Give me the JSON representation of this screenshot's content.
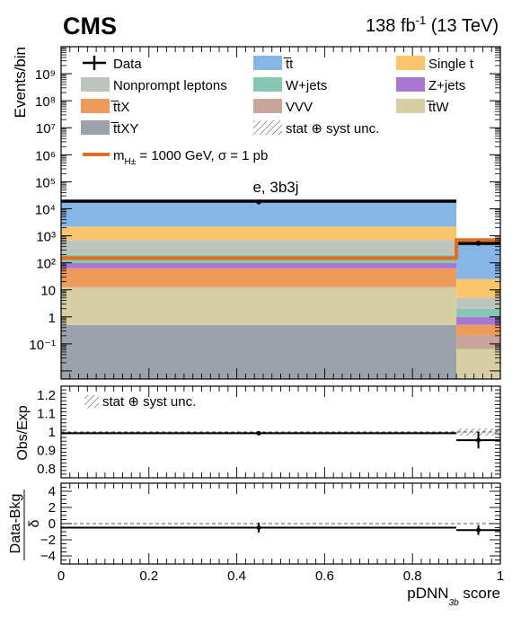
{
  "header": {
    "experiment": "CMS",
    "lumi": "138 fb",
    "lumi_sup": "-1",
    "energy": " (13 TeV)"
  },
  "chart_data": [
    {
      "type": "bar",
      "panel": "main",
      "stacked": true,
      "ylabel": "Events/bin",
      "yscale": "log",
      "ylim": [
        0.005,
        10000000000.0
      ],
      "xlim": [
        0,
        1
      ],
      "bins": [
        [
          0,
          0.9
        ],
        [
          0.9,
          1.0
        ]
      ],
      "category_label": "e, 3b3j",
      "yticks": [
        "10⁻¹",
        "1",
        "10",
        "10²",
        "10³",
        "10⁴",
        "10⁵",
        "10⁶",
        "10⁷",
        "10⁸",
        "10⁹"
      ],
      "series": [
        {
          "name": "t̅tXY",
          "color": "#9ca2ab",
          "values": [
            0.5,
            0.005
          ]
        },
        {
          "name": "t̅tW",
          "color": "#d6cfa3",
          "values": [
            11.5,
            0.06
          ]
        },
        {
          "name": "VVV",
          "color": "#c8a59b",
          "values": [
            1,
            0.14
          ]
        },
        {
          "name": "t̅tX",
          "color": "#ee9a5a",
          "values": [
            50,
            0.3
          ]
        },
        {
          "name": "Z+jets",
          "color": "#a877d3",
          "values": [
            35,
            0.5
          ]
        },
        {
          "name": "W+jets",
          "color": "#86c7b4",
          "values": [
            100,
            1.0
          ]
        },
        {
          "name": "Nonprompt leptons",
          "color": "#bcc4bd",
          "values": [
            500,
            3.0
          ]
        },
        {
          "name": "Single t",
          "color": "#f9c66b",
          "values": [
            1500,
            20
          ]
        },
        {
          "name": "t̅t",
          "color": "#85b6e6",
          "values": [
            17000,
            500
          ]
        }
      ],
      "data": {
        "name": "Data",
        "x": [
          0.45,
          0.95
        ],
        "y": [
          18000,
          530
        ]
      },
      "signal": {
        "name": "m",
        "sub": "H±",
        "label_rest": " = 1000 GeV, σ = 1 pb",
        "color": "#e36f1c",
        "values": [
          150,
          700
        ]
      },
      "uncertainty_label": "stat ⊕ syst unc."
    },
    {
      "type": "line",
      "panel": "ratio",
      "ylabel": "Obs/Exp",
      "ylim": [
        0.75,
        1.25
      ],
      "yticks": [
        "0.8",
        "0.9",
        "1",
        "1.1",
        "1.2"
      ],
      "x": [
        0.45,
        0.95
      ],
      "y": [
        0.993,
        0.955
      ],
      "yerr": [
        0.0,
        0.045
      ],
      "line_values": [
        0.993,
        0.955
      ],
      "unc_band": [
        0.0,
        0.02
      ],
      "uncertainty_label": "stat ⊕ syst unc."
    },
    {
      "type": "line",
      "panel": "pull",
      "ylabel": "Data-Bkg",
      "ylabel_den": "δ",
      "ylim": [
        -5,
        5
      ],
      "yticks": [
        "−4",
        "−2",
        "0",
        "2",
        "4"
      ],
      "x": [
        0.45,
        0.95
      ],
      "y": [
        -0.5,
        -0.8
      ],
      "yerr": [
        0.6,
        0.6
      ],
      "line_values": [
        -0.5,
        -0.8
      ],
      "xlabel": "pDNN",
      "xlabel_sub": "3b",
      "xlabel_rest": " score",
      "xticks": [
        "0",
        "0.2",
        "0.4",
        "0.6",
        "0.8",
        "1"
      ]
    }
  ],
  "legend": {
    "entries": [
      {
        "label": "Data",
        "kind": "data"
      },
      {
        "label": "t̅t",
        "color": "#85b6e6"
      },
      {
        "label": "Single t",
        "color": "#f9c66b"
      },
      {
        "label": "Nonprompt leptons",
        "color": "#bcc4bd"
      },
      {
        "label": "W+jets",
        "color": "#86c7b4"
      },
      {
        "label": "Z+jets",
        "color": "#a877d3"
      },
      {
        "label": "t̅tX",
        "color": "#ee9a5a"
      },
      {
        "label": "VVV",
        "color": "#c8a59b"
      },
      {
        "label": "t̅tW",
        "color": "#d6cfa3"
      },
      {
        "label": "t̅tXY",
        "color": "#9ca2ab"
      },
      {
        "label": "stat ⊕ syst unc.",
        "kind": "hatch"
      }
    ]
  }
}
